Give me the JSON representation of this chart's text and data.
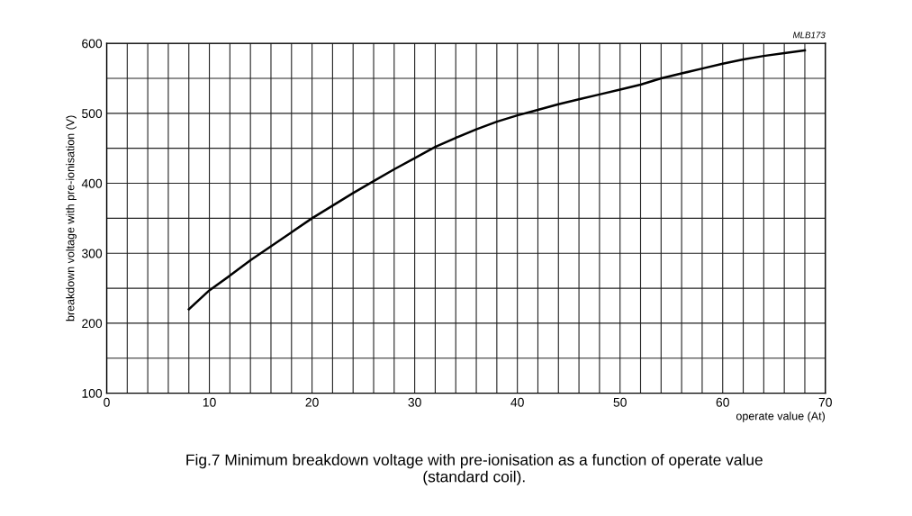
{
  "chart_data": {
    "type": "line",
    "xlabel": "operate value (At)",
    "ylabel": "breakdown voltage with pre-ionisation (V)",
    "annotations": [
      "MLB173",
      "Fig.7 Minimum breakdown voltage with pre-ionisation as a function of operate value\n(standard coil)."
    ],
    "x": [
      8,
      10,
      12,
      14,
      16,
      18,
      20,
      22,
      24,
      26,
      28,
      30,
      32,
      34,
      36,
      38,
      40,
      42,
      44,
      46,
      48,
      50,
      52,
      54,
      56,
      58,
      60,
      62,
      64,
      66,
      68
    ],
    "series": [
      {
        "color": "#000000",
        "values": [
          220,
          247,
          268,
          290,
          310,
          330,
          350,
          368,
          386,
          403,
          420,
          436,
          452,
          465,
          477,
          488,
          497,
          505,
          513,
          520,
          527,
          534,
          541,
          550,
          557,
          564,
          571,
          577,
          582,
          586,
          590
        ]
      }
    ],
    "xlim": [
      0,
      70
    ],
    "ylim": [
      100,
      600
    ],
    "xticks": [
      0,
      {
        "value": 2,
        "label": null
      },
      {
        "value": 4,
        "label": null
      },
      {
        "value": 6,
        "label": null
      },
      {
        "value": 8,
        "label": null
      },
      10,
      {
        "value": 12,
        "label": null
      },
      {
        "value": 14,
        "label": null
      },
      {
        "value": 16,
        "label": null
      },
      {
        "value": 18,
        "label": null
      },
      20,
      {
        "value": 22,
        "label": null
      },
      {
        "value": 24,
        "label": null
      },
      {
        "value": 26,
        "label": null
      },
      {
        "value": 28,
        "label": null
      },
      30,
      {
        "value": 32,
        "label": null
      },
      {
        "value": 34,
        "label": null
      },
      {
        "value": 36,
        "label": null
      },
      {
        "value": 38,
        "label": null
      },
      40,
      {
        "value": 42,
        "label": null
      },
      {
        "value": 44,
        "label": null
      },
      {
        "value": 46,
        "label": null
      },
      {
        "value": 48,
        "label": null
      },
      50,
      {
        "value": 52,
        "label": null
      },
      {
        "value": 54,
        "label": null
      },
      {
        "value": 56,
        "label": null
      },
      {
        "value": 58,
        "label": null
      },
      60,
      {
        "value": 62,
        "label": null
      },
      {
        "value": 64,
        "label": null
      },
      {
        "value": 66,
        "label": null
      },
      {
        "value": 68,
        "label": null
      },
      70
    ],
    "yticks": [
      100,
      {
        "value": 150,
        "label": null
      },
      200,
      {
        "value": 250,
        "label": null
      },
      300,
      {
        "value": 350,
        "label": null
      },
      400,
      {
        "value": 450,
        "label": null
      },
      500,
      {
        "value": 550,
        "label": null
      },
      600
    ],
    "grid": true,
    "legend": false,
    "marker": "none",
    "line_style": "solid"
  }
}
